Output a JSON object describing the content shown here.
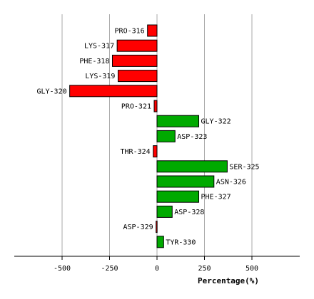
{
  "chart_data": {
    "type": "bar",
    "orientation": "horizontal",
    "categories": [
      "PRO-316",
      "LYS-317",
      "PHE-318",
      "LYS-319",
      "GLY-320",
      "PRO-321",
      "GLY-322",
      "ASP-323",
      "THR-324",
      "SER-325",
      "ASN-326",
      "PHE-327",
      "ASP-328",
      "ASP-329",
      "TYR-330"
    ],
    "values": [
      -50,
      -210,
      -235,
      -205,
      -460,
      -15,
      220,
      95,
      -20,
      370,
      300,
      220,
      80,
      -5,
      35
    ],
    "xlabel": "Percentage(%)",
    "ylabel": "",
    "xlim": [
      -750,
      750
    ],
    "xticks": [
      -500,
      -250,
      0,
      250,
      500
    ],
    "xtick_labels": [
      "-500",
      "-250",
      "0",
      "250",
      "500"
    ],
    "grid": "vertical",
    "colors": {
      "positive": "#00aa00",
      "negative": "#ff0000",
      "grid": "#aaaaaa",
      "axis": "#000000"
    }
  }
}
